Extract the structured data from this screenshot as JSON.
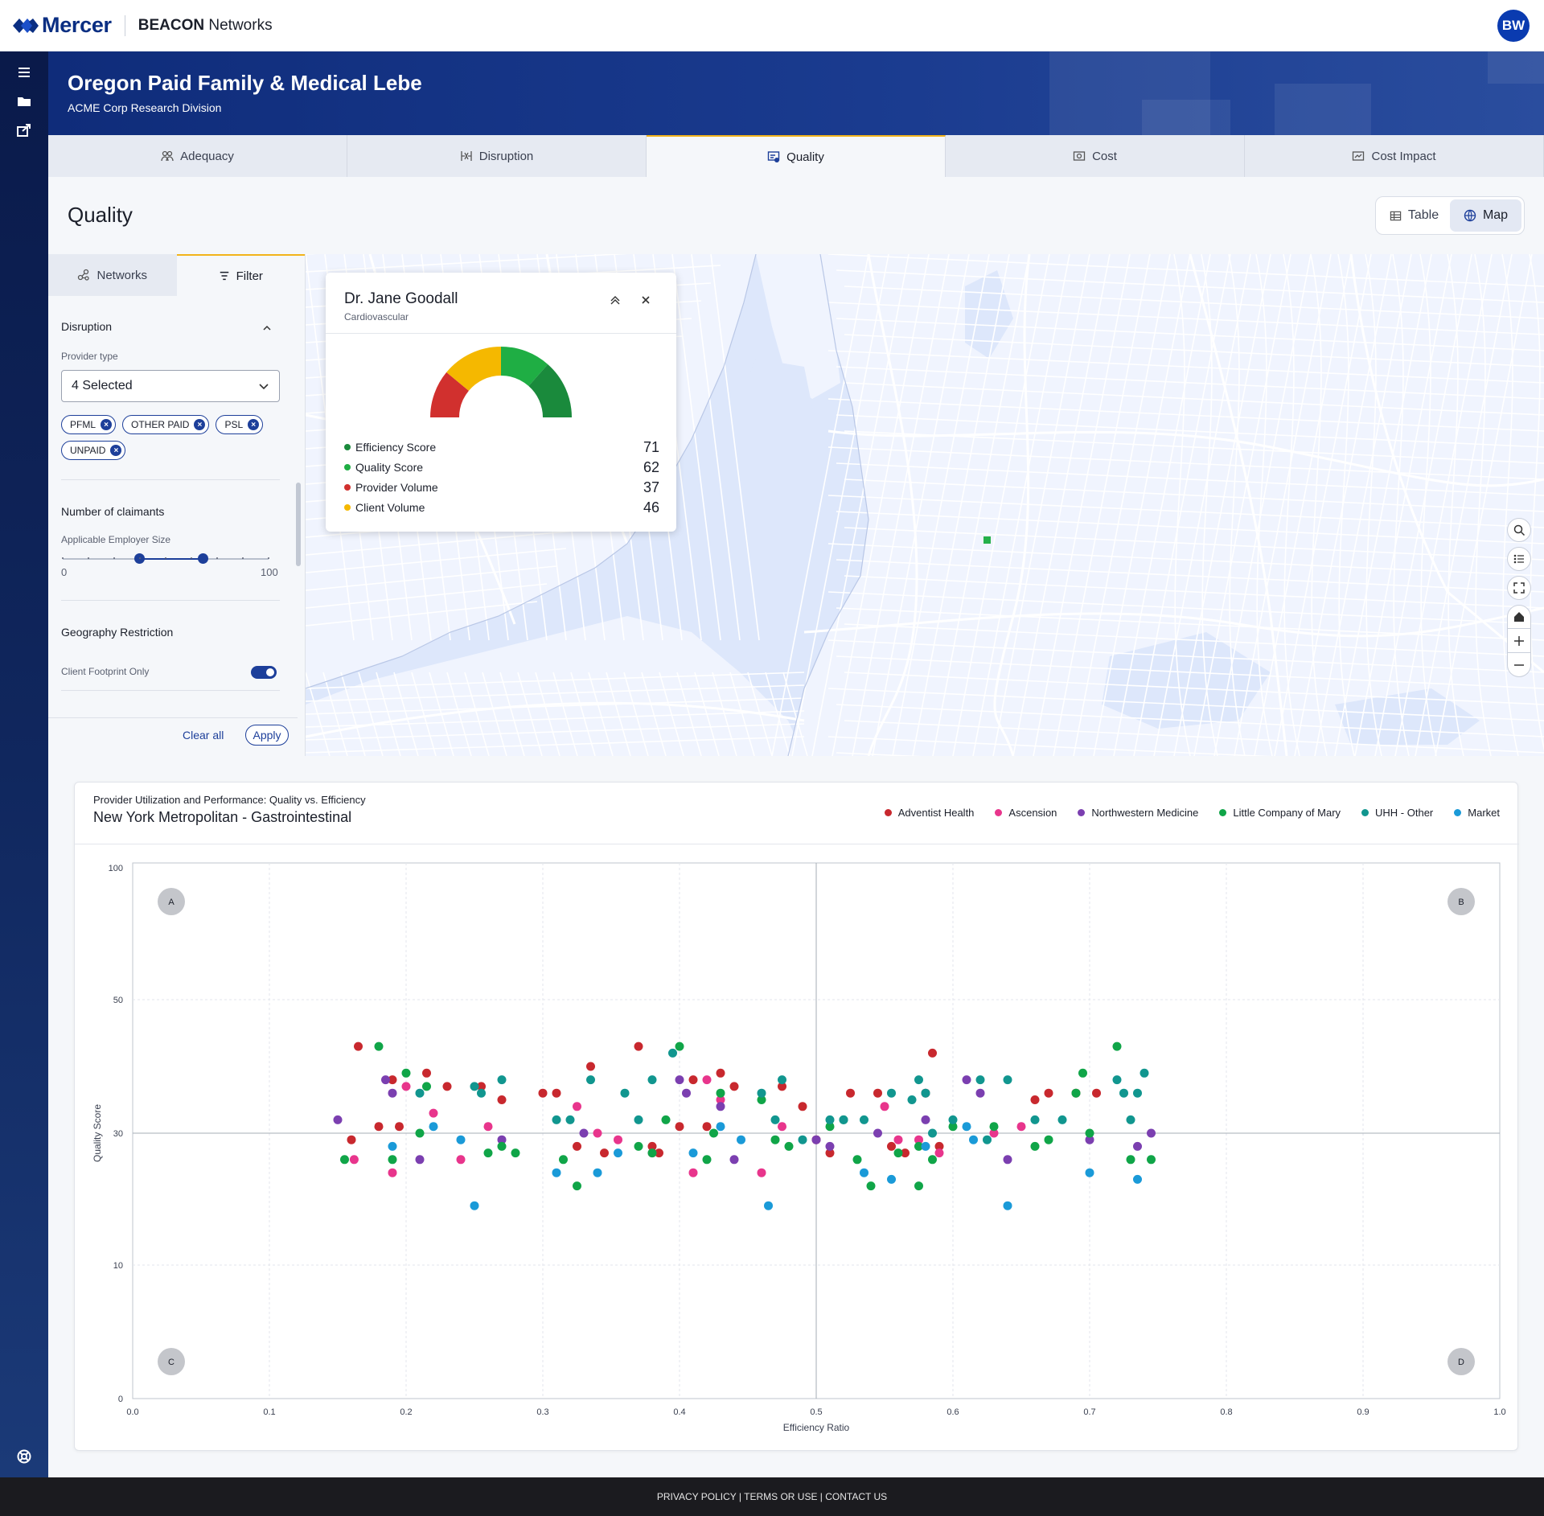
{
  "header": {
    "logo_text": "Mercer",
    "app_brand": "BEACON",
    "app_name": "Networks",
    "avatar_initials": "BW"
  },
  "banner": {
    "title": "Oregon Paid Family & Medical Lebe",
    "subtitle": "ACME Corp Research Division"
  },
  "rail": {
    "icons": [
      "menu-icon",
      "folder-icon",
      "share-icon",
      "help-icon"
    ]
  },
  "tabs": [
    {
      "label": "Adequacy",
      "icon": "adequacy-icon"
    },
    {
      "label": "Disruption",
      "icon": "disruption-icon"
    },
    {
      "label": "Quality",
      "icon": "quality-icon",
      "active": true
    },
    {
      "label": "Cost",
      "icon": "cost-icon"
    },
    {
      "label": "Cost Impact",
      "icon": "cost-impact-icon"
    }
  ],
  "page": {
    "title": "Quality",
    "view_toggle": {
      "table": "Table",
      "map": "Map",
      "active": "Map"
    }
  },
  "filters": {
    "tabs": {
      "networks": "Networks",
      "filter": "Filter"
    },
    "disruption": {
      "title": "Disruption",
      "provider_type_label": "Provider type",
      "provider_type_value": "4 Selected",
      "chips": [
        "PFML",
        "OTHER PAID",
        "PSL",
        "UNPAID"
      ]
    },
    "claimants": {
      "title": "Number of claimants",
      "label": "Applicable Employer Size",
      "min": "0",
      "max": "100",
      "range_low": 37,
      "range_high": 68
    },
    "geography": {
      "title": "Geography Restriction",
      "toggle_label": "Client Footprint Only",
      "toggle_on": true
    },
    "clear_label": "Clear all",
    "apply_label": "Apply"
  },
  "popup": {
    "name": "Dr. Jane Goodall",
    "specialty": "Cardiovascular",
    "metrics": [
      {
        "label": "Efficiency Score",
        "value": "71",
        "color": "#1a8a3c"
      },
      {
        "label": "Quality Score",
        "value": "62",
        "color": "#1fae44"
      },
      {
        "label": "Provider Volume",
        "value": "37",
        "color": "#d1302e"
      },
      {
        "label": "Client Volume",
        "value": "46",
        "color": "#f5b800"
      }
    ]
  },
  "chart": {
    "pre_title": "Provider Utilization and Performance: Quality vs. Efficiency",
    "title": "New York Metropolitan -  Gastrointestinal",
    "legend": [
      {
        "name": "Adventist Health",
        "color": "#c8282e"
      },
      {
        "name": "Ascension",
        "color": "#e8358c"
      },
      {
        "name": "Northwestern Medicine",
        "color": "#7b3fb0"
      },
      {
        "name": "Little Company of Mary",
        "color": "#10a548"
      },
      {
        "name": "UHH - Other",
        "color": "#11968f"
      },
      {
        "name": "Market",
        "color": "#1a9ad8"
      }
    ]
  },
  "chart_data": {
    "type": "scatter",
    "title": "New York Metropolitan -  Gastrointestinal",
    "subtitle": "Provider Utilization and Performance: Quality vs. Efficiency",
    "xlabel": "Efficiency Ratio",
    "ylabel": "Quality Score",
    "xlim": [
      0.0,
      1.0
    ],
    "x_ticks": [
      "0.0",
      "0.1",
      "0.2",
      "0.3",
      "0.4",
      "0.5",
      "0.6",
      "0.7",
      "0.8",
      "0.9",
      "1.0"
    ],
    "y_ticks": [
      "0",
      "10",
      "30",
      "50",
      "100"
    ],
    "quadrants": [
      "A",
      "B",
      "C",
      "D"
    ],
    "grid": true,
    "legend_position": "top-right",
    "series": [
      {
        "name": "Adventist Health",
        "color": "#c8282e",
        "points": [
          [
            0.165,
            43
          ],
          [
            0.18,
            31
          ],
          [
            0.19,
            38
          ],
          [
            0.195,
            31
          ],
          [
            0.215,
            39
          ],
          [
            0.23,
            37
          ],
          [
            0.16,
            29
          ],
          [
            0.255,
            37
          ],
          [
            0.27,
            35
          ],
          [
            0.3,
            36
          ],
          [
            0.31,
            36
          ],
          [
            0.325,
            28
          ],
          [
            0.335,
            40
          ],
          [
            0.345,
            27
          ],
          [
            0.37,
            43
          ],
          [
            0.38,
            28
          ],
          [
            0.385,
            27
          ],
          [
            0.4,
            31
          ],
          [
            0.41,
            38
          ],
          [
            0.42,
            31
          ],
          [
            0.43,
            39
          ],
          [
            0.44,
            37
          ],
          [
            0.475,
            37
          ],
          [
            0.49,
            34
          ],
          [
            0.5,
            29
          ],
          [
            0.51,
            27
          ],
          [
            0.525,
            36
          ],
          [
            0.545,
            36
          ],
          [
            0.555,
            28
          ],
          [
            0.565,
            27
          ],
          [
            0.585,
            42
          ],
          [
            0.58,
            36
          ],
          [
            0.59,
            28
          ],
          [
            0.66,
            35
          ],
          [
            0.67,
            36
          ],
          [
            0.69,
            36
          ],
          [
            0.705,
            36
          ]
        ]
      },
      {
        "name": "Ascension",
        "color": "#e8358c",
        "points": [
          [
            0.162,
            26
          ],
          [
            0.19,
            24
          ],
          [
            0.2,
            37
          ],
          [
            0.22,
            33
          ],
          [
            0.24,
            26
          ],
          [
            0.26,
            31
          ],
          [
            0.325,
            34
          ],
          [
            0.34,
            30
          ],
          [
            0.355,
            29
          ],
          [
            0.38,
            27
          ],
          [
            0.41,
            24
          ],
          [
            0.42,
            38
          ],
          [
            0.43,
            35
          ],
          [
            0.46,
            24
          ],
          [
            0.475,
            31
          ],
          [
            0.55,
            34
          ],
          [
            0.56,
            29
          ],
          [
            0.575,
            29
          ],
          [
            0.59,
            27
          ],
          [
            0.63,
            30
          ],
          [
            0.65,
            31
          ]
        ]
      },
      {
        "name": "Northwestern Medicine",
        "color": "#7b3fb0",
        "points": [
          [
            0.15,
            32
          ],
          [
            0.185,
            38
          ],
          [
            0.19,
            36
          ],
          [
            0.21,
            26
          ],
          [
            0.27,
            29
          ],
          [
            0.33,
            30
          ],
          [
            0.4,
            38
          ],
          [
            0.405,
            36
          ],
          [
            0.43,
            34
          ],
          [
            0.44,
            26
          ],
          [
            0.5,
            29
          ],
          [
            0.51,
            28
          ],
          [
            0.545,
            30
          ],
          [
            0.58,
            32
          ],
          [
            0.61,
            38
          ],
          [
            0.62,
            36
          ],
          [
            0.64,
            26
          ],
          [
            0.7,
            29
          ],
          [
            0.735,
            28
          ],
          [
            0.745,
            30
          ]
        ]
      },
      {
        "name": "Little Company of Mary",
        "color": "#10a548",
        "points": [
          [
            0.155,
            26
          ],
          [
            0.18,
            43
          ],
          [
            0.19,
            26
          ],
          [
            0.2,
            39
          ],
          [
            0.21,
            30
          ],
          [
            0.215,
            37
          ],
          [
            0.26,
            27
          ],
          [
            0.27,
            28
          ],
          [
            0.28,
            27
          ],
          [
            0.315,
            26
          ],
          [
            0.325,
            22
          ],
          [
            0.37,
            28
          ],
          [
            0.38,
            27
          ],
          [
            0.39,
            32
          ],
          [
            0.4,
            43
          ],
          [
            0.42,
            26
          ],
          [
            0.43,
            36
          ],
          [
            0.425,
            30
          ],
          [
            0.46,
            35
          ],
          [
            0.47,
            29
          ],
          [
            0.48,
            28
          ],
          [
            0.51,
            31
          ],
          [
            0.52,
            32
          ],
          [
            0.53,
            26
          ],
          [
            0.54,
            22
          ],
          [
            0.56,
            27
          ],
          [
            0.575,
            28
          ],
          [
            0.575,
            22
          ],
          [
            0.585,
            26
          ],
          [
            0.6,
            31
          ],
          [
            0.63,
            31
          ],
          [
            0.66,
            28
          ],
          [
            0.67,
            29
          ],
          [
            0.69,
            36
          ],
          [
            0.695,
            39
          ],
          [
            0.7,
            30
          ],
          [
            0.72,
            43
          ],
          [
            0.73,
            26
          ],
          [
            0.745,
            26
          ]
        ]
      },
      {
        "name": "UHH - Other",
        "color": "#11968f",
        "points": [
          [
            0.21,
            36
          ],
          [
            0.25,
            37
          ],
          [
            0.255,
            36
          ],
          [
            0.27,
            38
          ],
          [
            0.31,
            32
          ],
          [
            0.32,
            32
          ],
          [
            0.335,
            38
          ],
          [
            0.36,
            36
          ],
          [
            0.37,
            32
          ],
          [
            0.38,
            38
          ],
          [
            0.395,
            42
          ],
          [
            0.46,
            36
          ],
          [
            0.47,
            32
          ],
          [
            0.475,
            38
          ],
          [
            0.49,
            29
          ],
          [
            0.51,
            32
          ],
          [
            0.52,
            32
          ],
          [
            0.535,
            32
          ],
          [
            0.555,
            36
          ],
          [
            0.57,
            35
          ],
          [
            0.575,
            38
          ],
          [
            0.58,
            36
          ],
          [
            0.585,
            30
          ],
          [
            0.6,
            32
          ],
          [
            0.62,
            38
          ],
          [
            0.625,
            29
          ],
          [
            0.64,
            38
          ],
          [
            0.66,
            32
          ],
          [
            0.68,
            32
          ],
          [
            0.72,
            38
          ],
          [
            0.725,
            36
          ],
          [
            0.73,
            32
          ],
          [
            0.735,
            36
          ],
          [
            0.74,
            39
          ]
        ]
      },
      {
        "name": "Market",
        "color": "#1a9ad8",
        "points": [
          [
            0.19,
            28
          ],
          [
            0.22,
            31
          ],
          [
            0.24,
            29
          ],
          [
            0.25,
            19
          ],
          [
            0.31,
            24
          ],
          [
            0.34,
            24
          ],
          [
            0.355,
            27
          ],
          [
            0.41,
            27
          ],
          [
            0.43,
            31
          ],
          [
            0.445,
            29
          ],
          [
            0.465,
            19
          ],
          [
            0.535,
            24
          ],
          [
            0.555,
            23
          ],
          [
            0.58,
            28
          ],
          [
            0.61,
            31
          ],
          [
            0.615,
            29
          ],
          [
            0.64,
            19
          ],
          [
            0.7,
            24
          ],
          [
            0.735,
            23
          ]
        ]
      }
    ]
  },
  "footer": {
    "text": "PRIVACY POLICY | TERMS OR USE | CONTACT US"
  }
}
